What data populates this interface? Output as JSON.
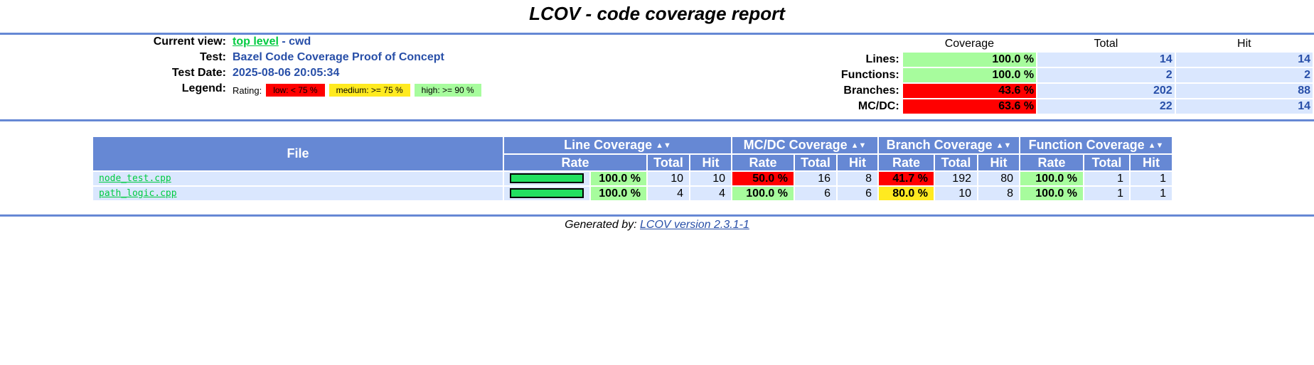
{
  "page_title": "LCOV - code coverage report",
  "header": {
    "current_view_label": "Current view:",
    "current_view_link": "top level",
    "current_view_rest": " - cwd",
    "test_label": "Test:",
    "test_value": "Bazel Code Coverage Proof of Concept",
    "date_label": "Test Date:",
    "date_value": "2025-08-06 20:05:34",
    "legend_label": "Legend:",
    "rating_label": "Rating:",
    "legend_low": "low: < 75 %",
    "legend_medium": "medium: >= 75 %",
    "legend_high": "high: >= 90 %"
  },
  "summary": {
    "col_coverage": "Coverage",
    "col_total": "Total",
    "col_hit": "Hit",
    "rows": [
      {
        "label": "Lines:",
        "coverage": "100.0 %",
        "total": "14",
        "hit": "14",
        "rating": "high"
      },
      {
        "label": "Functions:",
        "coverage": "100.0 %",
        "total": "2",
        "hit": "2",
        "rating": "high"
      },
      {
        "label": "Branches:",
        "coverage": "43.6 %",
        "total": "202",
        "hit": "88",
        "rating": "low"
      },
      {
        "label": "MC/DC:",
        "coverage": "63.6 %",
        "total": "22",
        "hit": "14",
        "rating": "low"
      }
    ]
  },
  "file_table": {
    "col_file": "File",
    "group_line": "Line Coverage",
    "group_mcdc": "MC/DC Coverage",
    "group_branch": "Branch Coverage",
    "group_function": "Function Coverage",
    "sub_rate": "Rate",
    "sub_total": "Total",
    "sub_hit": "Hit",
    "sort_icon": "▲▼",
    "rows": [
      {
        "file": "node_test.cpp",
        "line_fraction": 1.0,
        "line_rate": "100.0 %",
        "line_total": "10",
        "line_hit": "10",
        "mcdc_rate": "50.0 %",
        "mcdc_total": "16",
        "mcdc_hit": "8",
        "branch_rate": "41.7 %",
        "branch_total": "192",
        "branch_hit": "80",
        "func_rate": "100.0 %",
        "func_total": "1",
        "func_hit": "1"
      },
      {
        "file": "path_logic.cpp",
        "line_fraction": 1.0,
        "line_rate": "100.0 %",
        "line_total": "4",
        "line_hit": "4",
        "mcdc_rate": "100.0 %",
        "mcdc_total": "6",
        "mcdc_hit": "6",
        "branch_rate": "80.0 %",
        "branch_total": "10",
        "branch_hit": "8",
        "func_rate": "100.0 %",
        "func_total": "1",
        "func_hit": "1"
      }
    ]
  },
  "footer": {
    "generated_by": "Generated by: ",
    "version_link": "LCOV version 2.3.1-1"
  },
  "colors": {
    "header_blue": "#6688d4",
    "low": "#ff0000",
    "medium": "#ffea20",
    "high": "#a7fc9d",
    "cell_bg": "#dae7fe",
    "link_green": "#00cb40"
  }
}
